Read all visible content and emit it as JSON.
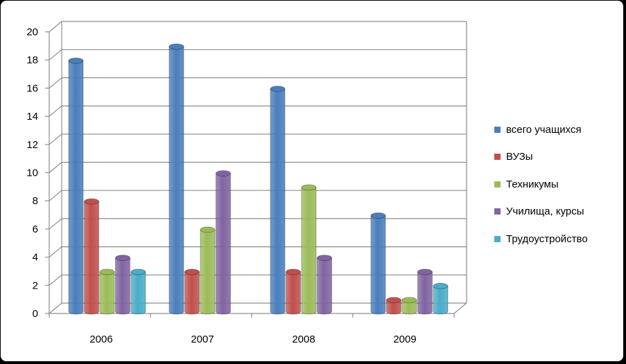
{
  "chart_data": {
    "type": "bar",
    "title": "",
    "xlabel": "",
    "ylabel": "",
    "categories": [
      "2006",
      "2007",
      "2008",
      "2009"
    ],
    "ylim": [
      0,
      20
    ],
    "yticks": [
      0,
      2,
      4,
      6,
      8,
      10,
      12,
      14,
      16,
      18,
      20
    ],
    "grid": true,
    "legend_position": "right",
    "series": [
      {
        "name": "всего учащихся",
        "color": "#4a7ebb",
        "values": [
          18,
          19,
          16,
          7
        ]
      },
      {
        "name": "ВУЗы",
        "color": "#c0504d",
        "values": [
          8,
          3,
          3,
          1
        ]
      },
      {
        "name": "Техникумы",
        "color": "#9bbb59",
        "values": [
          3,
          6,
          9,
          1
        ]
      },
      {
        "name": "Училища, курсы",
        "color": "#8064a2",
        "values": [
          4,
          10,
          4,
          3
        ]
      },
      {
        "name": "Трудоустройство",
        "color": "#4bacc6",
        "values": [
          3,
          0,
          0,
          2
        ]
      }
    ]
  }
}
